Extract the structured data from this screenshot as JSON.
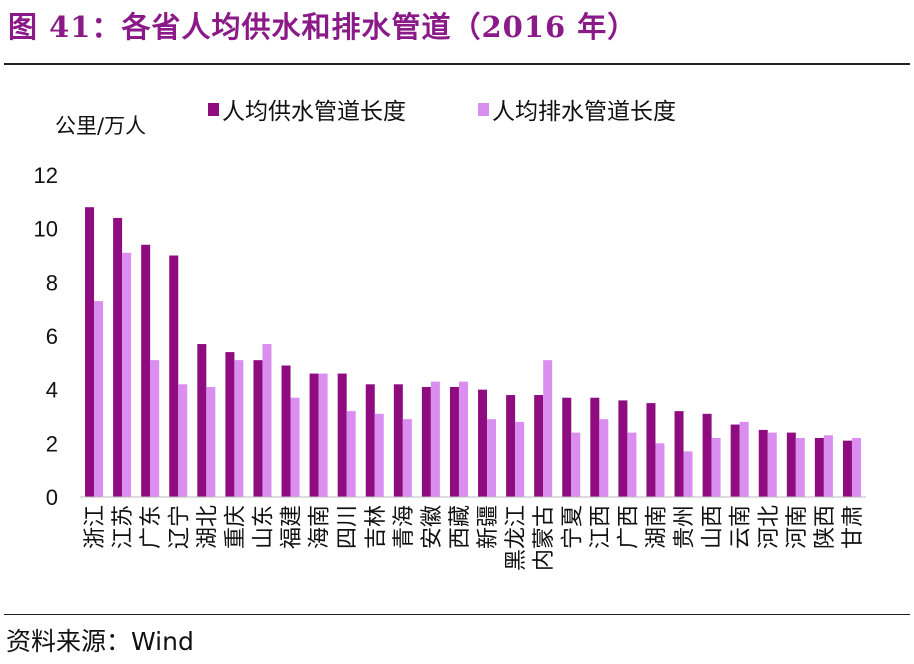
{
  "title": "图 41：各省人均供水和排水管道（2016 年）",
  "source": "资料来源：Wind",
  "colors": {
    "title": "#8b1a89",
    "supply": "#8e0c80",
    "drainage": "#d98ef0"
  },
  "chart_data": {
    "type": "bar",
    "ylabel": "公里/万人",
    "ylim": [
      0,
      12
    ],
    "yticks": [
      0,
      2,
      4,
      6,
      8,
      10,
      12
    ],
    "grid": false,
    "legend_placement": "top",
    "categories": [
      "浙江",
      "江苏",
      "广东",
      "辽宁",
      "湖北",
      "重庆",
      "山东",
      "福建",
      "海南",
      "四川",
      "吉林",
      "青海",
      "安徽",
      "西藏",
      "新疆",
      "黑龙江",
      "内蒙古",
      "宁夏",
      "江西",
      "广西",
      "湖南",
      "贵州",
      "山西",
      "云南",
      "河北",
      "河南",
      "陕西",
      "甘肃"
    ],
    "series": [
      {
        "name": "人均供水管道长度",
        "values": [
          10.8,
          10.4,
          9.4,
          9.0,
          5.7,
          5.4,
          5.1,
          4.9,
          4.6,
          4.6,
          4.2,
          4.2,
          4.1,
          4.1,
          4.0,
          3.8,
          3.8,
          3.7,
          3.7,
          3.6,
          3.5,
          3.2,
          3.1,
          2.7,
          2.5,
          2.4,
          2.2,
          2.1
        ]
      },
      {
        "name": "人均排水管道长度",
        "values": [
          7.3,
          9.1,
          5.1,
          4.2,
          4.1,
          5.1,
          5.7,
          3.7,
          4.6,
          3.2,
          3.1,
          2.9,
          4.3,
          4.3,
          2.9,
          2.8,
          5.1,
          2.4,
          2.9,
          2.4,
          2.0,
          1.7,
          2.2,
          2.8,
          2.4,
          2.2,
          2.3,
          2.2
        ]
      }
    ]
  }
}
